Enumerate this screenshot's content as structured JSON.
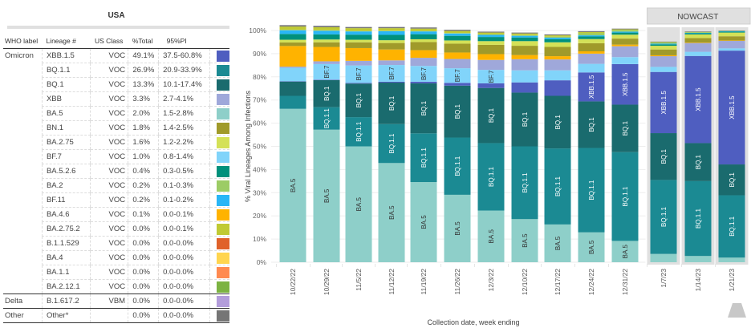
{
  "table": {
    "title": "USA",
    "headers": [
      "WHO label",
      "Lineage #",
      "US Class",
      "%Total",
      "95%PI"
    ],
    "rows": [
      {
        "who": "Omicron",
        "lineage": "XBB.1.5",
        "class": "VOC",
        "total": "49.1%",
        "pi": "37.5-60.8%",
        "color": "#4f5ec0"
      },
      {
        "who": "",
        "lineage": "BQ.1.1",
        "class": "VOC",
        "total": "26.9%",
        "pi": "20.9-33.9%",
        "color": "#1b8a93"
      },
      {
        "who": "",
        "lineage": "BQ.1",
        "class": "VOC",
        "total": "13.3%",
        "pi": "10.1-17.4%",
        "color": "#1a6b6e"
      },
      {
        "who": "",
        "lineage": "XBB",
        "class": "VOC",
        "total": "3.3%",
        "pi": "2.7-4.1%",
        "color": "#9fa8da"
      },
      {
        "who": "",
        "lineage": "BA.5",
        "class": "VOC",
        "total": "2.0%",
        "pi": "1.5-2.8%",
        "color": "#8ecfc9"
      },
      {
        "who": "",
        "lineage": "BN.1",
        "class": "VOC",
        "total": "1.8%",
        "pi": "1.4-2.5%",
        "color": "#a09a2a"
      },
      {
        "who": "",
        "lineage": "BA.2.75",
        "class": "VOC",
        "total": "1.6%",
        "pi": "1.2-2.2%",
        "color": "#d4e157"
      },
      {
        "who": "",
        "lineage": "BF.7",
        "class": "VOC",
        "total": "1.0%",
        "pi": "0.8-1.4%",
        "color": "#81d4fa"
      },
      {
        "who": "",
        "lineage": "BA.5.2.6",
        "class": "VOC",
        "total": "0.4%",
        "pi": "0.3-0.5%",
        "color": "#00917c"
      },
      {
        "who": "",
        "lineage": "BA.2",
        "class": "VOC",
        "total": "0.2%",
        "pi": "0.1-0.3%",
        "color": "#9ccc65"
      },
      {
        "who": "",
        "lineage": "BF.11",
        "class": "VOC",
        "total": "0.2%",
        "pi": "0.1-0.2%",
        "color": "#29b6f6"
      },
      {
        "who": "",
        "lineage": "BA.4.6",
        "class": "VOC",
        "total": "0.1%",
        "pi": "0.0-0.1%",
        "color": "#ffb300"
      },
      {
        "who": "",
        "lineage": "BA.2.75.2",
        "class": "VOC",
        "total": "0.0%",
        "pi": "0.0-0.1%",
        "color": "#c0ca33"
      },
      {
        "who": "",
        "lineage": "B.1.1.529",
        "class": "VOC",
        "total": "0.0%",
        "pi": "0.0-0.0%",
        "color": "#e0622a"
      },
      {
        "who": "",
        "lineage": "BA.4",
        "class": "VOC",
        "total": "0.0%",
        "pi": "0.0-0.0%",
        "color": "#ffd54f"
      },
      {
        "who": "",
        "lineage": "BA.1.1",
        "class": "VOC",
        "total": "0.0%",
        "pi": "0.0-0.0%",
        "color": "#ff8a50"
      },
      {
        "who": "",
        "lineage": "BA.2.12.1",
        "class": "VOC",
        "total": "0.0%",
        "pi": "0.0-0.0%",
        "color": "#7cb342"
      },
      {
        "who": "Delta",
        "lineage": "B.1.617.2",
        "class": "VBM",
        "total": "0.0%",
        "pi": "0.0-0.0%",
        "color": "#b39ddb"
      },
      {
        "who": "Other",
        "lineage": "Other*",
        "class": "",
        "total": "0.0%",
        "pi": "0.0-0.0%",
        "color": "#757575"
      }
    ]
  },
  "chart_data": {
    "type": "bar",
    "stacked": true,
    "title": "",
    "xlabel": "Collection date, week ending",
    "ylabel": "% Viral Lineages Among Infections",
    "ylim": [
      0,
      100
    ],
    "yticks": [
      "0%",
      "10%",
      "20%",
      "30%",
      "40%",
      "50%",
      "60%",
      "70%",
      "80%",
      "90%",
      "100%"
    ],
    "grid": true,
    "nowcast_label": "NOWCAST",
    "nowcast_categories": [
      "1/7/23",
      "1/14/23",
      "1/21/23"
    ],
    "categories": [
      "10/22/22",
      "10/29/22",
      "11/5/22",
      "11/12/22",
      "11/19/22",
      "11/26/22",
      "12/3/22",
      "12/10/22",
      "12/17/22",
      "12/24/22",
      "12/31/22",
      "1/7/23",
      "1/14/23",
      "1/21/23"
    ],
    "series": [
      {
        "name": "BA.5",
        "color": "#8ecfc9",
        "values": [
          66.2,
          57.2,
          50.0,
          42.8,
          34.6,
          29.1,
          22.3,
          18.6,
          16.3,
          12.9,
          9.2,
          3.6,
          2.7,
          2.0
        ]
      },
      {
        "name": "BQ.1.1",
        "color": "#1b8a93",
        "values": [
          5.6,
          9.7,
          12.6,
          16.8,
          21.0,
          24.7,
          29.1,
          31.4,
          32.8,
          36.4,
          38.3,
          31.9,
          32.3,
          26.9
        ]
      },
      {
        "name": "BQ.1",
        "color": "#1a6b6e",
        "values": [
          6.2,
          11.7,
          14.5,
          17.9,
          21.6,
          22.4,
          23.8,
          23.2,
          22.7,
          20.1,
          20.5,
          20.2,
          16.4,
          13.3
        ]
      },
      {
        "name": "XBB.1.5",
        "color": "#4f5ec0",
        "values": [
          0.1,
          0.2,
          0.3,
          0.4,
          0.7,
          1.2,
          2.0,
          4.4,
          6.7,
          12.5,
          17.5,
          26.4,
          37.6,
          49.1
        ]
      },
      {
        "name": "BF.7",
        "color": "#81d4fa",
        "values": [
          5.8,
          6.7,
          7.5,
          7.2,
          6.8,
          6.3,
          5.8,
          5.2,
          4.3,
          3.7,
          3.0,
          2.2,
          1.8,
          1.0
        ]
      },
      {
        "name": "XBB",
        "color": "#9fa8da",
        "values": [
          0.5,
          1.2,
          2.0,
          2.0,
          3.5,
          4.0,
          4.3,
          4.8,
          4.7,
          4.4,
          4.7,
          4.6,
          3.8,
          3.3
        ]
      },
      {
        "name": "BA.4.6",
        "color": "#ffb300",
        "values": [
          8.9,
          6.2,
          5.5,
          4.7,
          3.3,
          2.8,
          2.5,
          1.8,
          1.4,
          1.0,
          0.7,
          0.4,
          0.2,
          0.1
        ]
      },
      {
        "name": "BN.1",
        "color": "#a09a2a",
        "values": [
          1.5,
          2.0,
          2.5,
          2.8,
          3.5,
          3.8,
          4.0,
          4.0,
          4.0,
          3.5,
          2.6,
          2.5,
          1.9,
          1.8
        ]
      },
      {
        "name": "BA.2.75",
        "color": "#d4e157",
        "values": [
          1.2,
          1.2,
          1.1,
          1.2,
          1.2,
          1.4,
          1.6,
          2.0,
          2.0,
          1.8,
          1.7,
          1.6,
          1.6,
          1.6
        ]
      },
      {
        "name": "BA.5.2.6",
        "color": "#00917c",
        "values": [
          2.5,
          2.2,
          2.2,
          2.3,
          2.2,
          2.0,
          1.8,
          1.6,
          1.4,
          1.1,
          0.9,
          0.6,
          0.5,
          0.4
        ]
      },
      {
        "name": "BF.11",
        "color": "#29b6f6",
        "values": [
          1.6,
          1.6,
          1.4,
          1.6,
          1.2,
          1.0,
          0.9,
          0.7,
          0.6,
          0.5,
          0.4,
          0.3,
          0.2,
          0.2
        ]
      },
      {
        "name": "BA.2",
        "color": "#9ccc65",
        "values": [
          0.2,
          0.2,
          0.2,
          0.2,
          0.2,
          0.2,
          0.2,
          0.3,
          0.4,
          0.9,
          0.7,
          0.5,
          0.3,
          0.2
        ]
      },
      {
        "name": "BA.2.75.2",
        "color": "#c0ca33",
        "values": [
          1.4,
          1.3,
          1.2,
          1.1,
          1.0,
          0.9,
          0.8,
          0.7,
          0.6,
          0.5,
          0.3,
          0.2,
          0.1,
          0.0
        ]
      },
      {
        "name": "Other",
        "color": "#757575",
        "values": [
          0.6,
          0.6,
          0.5,
          0.5,
          0.5,
          0.5,
          0.4,
          0.4,
          0.4,
          0.4,
          0.3,
          0.2,
          0.2,
          0.1
        ]
      }
    ],
    "bar_labels": [
      {
        "cat": 0,
        "series": "BA.5",
        "text": "BA.5"
      },
      {
        "cat": 1,
        "series": "BA.5",
        "text": "BA.5"
      },
      {
        "cat": 1,
        "series": "BQ.1.1",
        "text": "BQ.1.1"
      },
      {
        "cat": 1,
        "series": "BQ.1",
        "text": "BQ.1"
      },
      {
        "cat": 1,
        "series": "BF.7",
        "text": "BF.7"
      },
      {
        "cat": 2,
        "series": "BA.5",
        "text": "BA.5"
      },
      {
        "cat": 2,
        "series": "BQ.1.1",
        "text": "BQ.1.1"
      },
      {
        "cat": 2,
        "series": "BQ.1",
        "text": "BQ.1"
      },
      {
        "cat": 2,
        "series": "BF.7",
        "text": "BF.7"
      },
      {
        "cat": 3,
        "series": "BA.5",
        "text": "BA.5"
      },
      {
        "cat": 3,
        "series": "BQ.1.1",
        "text": "BQ.1.1"
      },
      {
        "cat": 3,
        "series": "BQ.1",
        "text": "BQ.1"
      },
      {
        "cat": 3,
        "series": "BF.7",
        "text": "BF.7"
      },
      {
        "cat": 4,
        "series": "BA.5",
        "text": "BA.5"
      },
      {
        "cat": 4,
        "series": "BQ.1.1",
        "text": "BQ.1.1"
      },
      {
        "cat": 4,
        "series": "BQ.1",
        "text": "BQ.1"
      },
      {
        "cat": 4,
        "series": "BF.7",
        "text": "BF.7"
      },
      {
        "cat": 5,
        "series": "BA.5",
        "text": "BA.5"
      },
      {
        "cat": 5,
        "series": "BQ.1.1",
        "text": "BQ.1.1"
      },
      {
        "cat": 5,
        "series": "BQ.1",
        "text": "BQ.1"
      },
      {
        "cat": 5,
        "series": "BF.7",
        "text": "BF.7"
      },
      {
        "cat": 6,
        "series": "BA.5",
        "text": "BA.5"
      },
      {
        "cat": 6,
        "series": "BQ.1.1",
        "text": "BQ.1.1"
      },
      {
        "cat": 6,
        "series": "BQ.1",
        "text": "BQ.1"
      },
      {
        "cat": 6,
        "series": "BF.7",
        "text": "BF.7"
      },
      {
        "cat": 7,
        "series": "BA.5",
        "text": "BA.5"
      },
      {
        "cat": 7,
        "series": "BQ.1.1",
        "text": "BQ.1.1"
      },
      {
        "cat": 7,
        "series": "BQ.1",
        "text": "BQ.1"
      },
      {
        "cat": 8,
        "series": "BA.5",
        "text": "BA.5"
      },
      {
        "cat": 8,
        "series": "BQ.1.1",
        "text": "BQ.1.1"
      },
      {
        "cat": 8,
        "series": "BQ.1",
        "text": "BQ.1"
      },
      {
        "cat": 9,
        "series": "BA.5",
        "text": "BA.5"
      },
      {
        "cat": 9,
        "series": "BQ.1.1",
        "text": "BQ.1.1"
      },
      {
        "cat": 9,
        "series": "BQ.1",
        "text": "BQ.1"
      },
      {
        "cat": 9,
        "series": "XBB.1.5",
        "text": "XBB.1.5"
      },
      {
        "cat": 10,
        "series": "BA.5",
        "text": "BA.5"
      },
      {
        "cat": 10,
        "series": "BQ.1.1",
        "text": "BQ.1.1"
      },
      {
        "cat": 10,
        "series": "BQ.1",
        "text": "BQ.1"
      },
      {
        "cat": 10,
        "series": "XBB.1.5",
        "text": "XBB.1.5"
      },
      {
        "cat": 11,
        "series": "BQ.1.1",
        "text": "BQ.1.1"
      },
      {
        "cat": 11,
        "series": "BQ.1",
        "text": "BQ.1"
      },
      {
        "cat": 11,
        "series": "XBB.1.5",
        "text": "XBB.1.5"
      },
      {
        "cat": 12,
        "series": "BQ.1.1",
        "text": "BQ.1.1"
      },
      {
        "cat": 12,
        "series": "BQ.1",
        "text": "BQ.1"
      },
      {
        "cat": 12,
        "series": "XBB.1.5",
        "text": "XBB.1.5"
      },
      {
        "cat": 13,
        "series": "BQ.1.1",
        "text": "BQ.1.1"
      },
      {
        "cat": 13,
        "series": "BQ.1",
        "text": "BQ.1"
      },
      {
        "cat": 13,
        "series": "XBB.1.5",
        "text": "XBB.1.5"
      }
    ],
    "dark_label_series": [
      "BA.5",
      "BF.7"
    ]
  }
}
